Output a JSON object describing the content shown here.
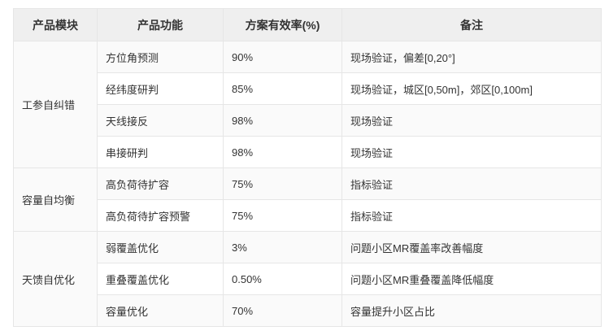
{
  "table": {
    "headers": [
      "产品模块",
      "产品功能",
      "方案有效率(%)",
      "备注"
    ],
    "groups": [
      {
        "module": "工参自纠错",
        "rows": [
          {
            "feature": "方位角预测",
            "rate": "90%",
            "note": "现场验证，偏差[0,20°]"
          },
          {
            "feature": "经纬度研判",
            "rate": "85%",
            "note": "现场验证，城区[0,50m]，郊区[0,100m]"
          },
          {
            "feature": "天线接反",
            "rate": "98%",
            "note": "现场验证"
          },
          {
            "feature": "串接研判",
            "rate": "98%",
            "note": "现场验证"
          }
        ]
      },
      {
        "module": "容量自均衡",
        "rows": [
          {
            "feature": "高负荷待扩容",
            "rate": "75%",
            "note": "指标验证"
          },
          {
            "feature": "高负荷待扩容预警",
            "rate": "75%",
            "note": "指标验证"
          }
        ]
      },
      {
        "module": "天馈自优化",
        "rows": [
          {
            "feature": "弱覆盖优化",
            "rate": "3%",
            "note": "问题小区MR覆盖率改善幅度"
          },
          {
            "feature": "重叠覆盖优化",
            "rate": "0.50%",
            "note": "问题小区MR重叠覆盖降低幅度"
          },
          {
            "feature": "容量优化",
            "rate": "70%",
            "note": "容量提升小区占比"
          }
        ]
      }
    ]
  }
}
